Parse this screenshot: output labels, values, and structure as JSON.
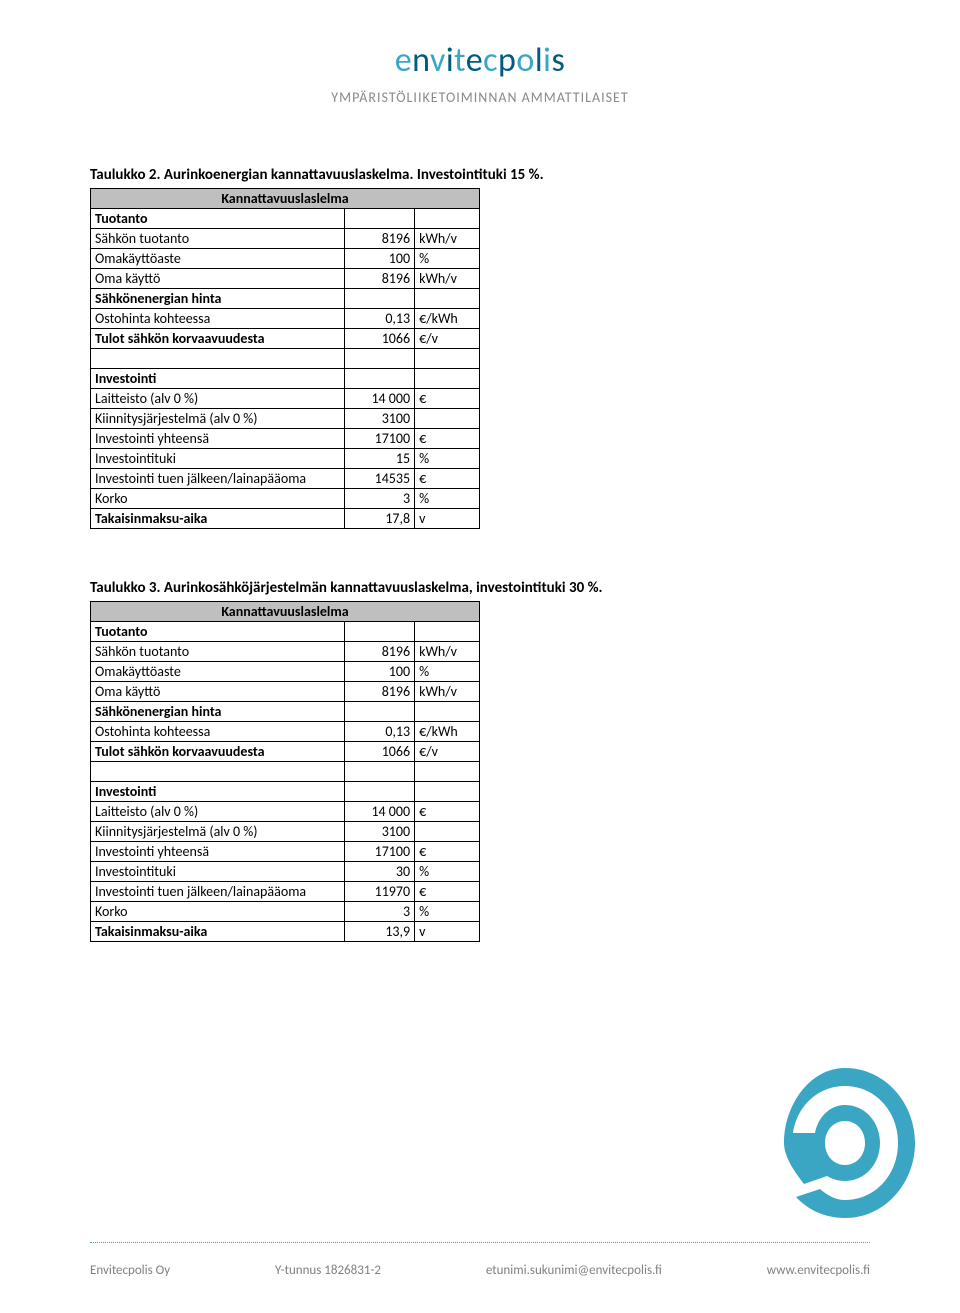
{
  "logo": {
    "text_parts": [
      {
        "t": "e",
        "c": "#3aa6c4"
      },
      {
        "t": "n",
        "c": "#005b7f"
      },
      {
        "t": "v",
        "c": "#3aa6c4"
      },
      {
        "t": "i",
        "c": "#005b7f"
      },
      {
        "t": "t",
        "c": "#3aa6c4"
      },
      {
        "t": "e",
        "c": "#005b7f"
      },
      {
        "t": "c",
        "c": "#3aa6c4"
      },
      {
        "t": "p",
        "c": "#005b7f"
      },
      {
        "t": "o",
        "c": "#3aa6c4"
      },
      {
        "t": "l",
        "c": "#005b7f"
      },
      {
        "t": "i",
        "c": "#3aa6c4"
      },
      {
        "t": "s",
        "c": "#005b7f"
      }
    ]
  },
  "subtitle": "YMPÄRISTÖLIIKETOIMINNAN AMMATTILAISET",
  "tables": [
    {
      "caption": "Taulukko 2. Aurinkoenergian kannattavuuslaskelma. Investointituki 15 %.",
      "header": "Kannattavuuslaslelma",
      "rows": [
        {
          "type": "section",
          "c1": "Tuotanto",
          "c2": "",
          "c3": ""
        },
        {
          "type": "data",
          "c1": "Sähkön tuotanto",
          "c2": "8196",
          "c3": "kWh/v"
        },
        {
          "type": "data",
          "c1": "Omakäyttöaste",
          "c2": "100",
          "c3": "%"
        },
        {
          "type": "data",
          "c1": "Oma käyttö",
          "c2": "8196",
          "c3": "kWh/v"
        },
        {
          "type": "bold",
          "c1": "Sähkönenergian hinta",
          "c2": "",
          "c3": ""
        },
        {
          "type": "data",
          "c1": "Ostohinta kohteessa",
          "c2": "0,13",
          "c3": "€/kWh"
        },
        {
          "type": "bold",
          "c1": "Tulot sähkön korvaavuudesta",
          "c2": "1066",
          "c3": "€/v"
        },
        {
          "type": "blank",
          "c1": "",
          "c2": "",
          "c3": ""
        },
        {
          "type": "bold",
          "c1": "Investointi",
          "c2": "",
          "c3": ""
        },
        {
          "type": "data",
          "c1": "Laitteisto (alv 0 %)",
          "c2": "14 000",
          "c3": "€"
        },
        {
          "type": "data",
          "c1": "Kiinnitysjärjestelmä (alv 0 %)",
          "c2": "3100",
          "c3": ""
        },
        {
          "type": "data",
          "c1": "Investointi yhteensä",
          "c2": "17100",
          "c3": "€"
        },
        {
          "type": "data",
          "c1": "Investointituki",
          "c2": "15",
          "c3": "%"
        },
        {
          "type": "data",
          "c1": "Investointi tuen jälkeen/lainapääoma",
          "c2": "14535",
          "c3": "€"
        },
        {
          "type": "data",
          "c1": "Korko",
          "c2": "3",
          "c3": "%"
        },
        {
          "type": "bold",
          "c1": "Takaisinmaksu-aika",
          "c2": "17,8",
          "c3": "v"
        }
      ]
    },
    {
      "caption": "Taulukko 3. Aurinkosähköjärjestelmän kannattavuuslaskelma, investointituki 30 %.",
      "header": "Kannattavuuslaslelma",
      "rows": [
        {
          "type": "section",
          "c1": "Tuotanto",
          "c2": "",
          "c3": ""
        },
        {
          "type": "data",
          "c1": "Sähkön tuotanto",
          "c2": "8196",
          "c3": "kWh/v"
        },
        {
          "type": "data",
          "c1": "Omakäyttöaste",
          "c2": "100",
          "c3": "%"
        },
        {
          "type": "data",
          "c1": "Oma käyttö",
          "c2": "8196",
          "c3": "kWh/v"
        },
        {
          "type": "bold",
          "c1": "Sähkönenergian hinta",
          "c2": "",
          "c3": ""
        },
        {
          "type": "data",
          "c1": "Ostohinta kohteessa",
          "c2": "0,13",
          "c3": "€/kWh"
        },
        {
          "type": "bold",
          "c1": "Tulot sähkön korvaavuudesta",
          "c2": "1066",
          "c3": "€/v"
        },
        {
          "type": "blank",
          "c1": "",
          "c2": "",
          "c3": ""
        },
        {
          "type": "bold",
          "c1": "Investointi",
          "c2": "",
          "c3": ""
        },
        {
          "type": "data",
          "c1": "Laitteisto (alv 0 %)",
          "c2": "14 000",
          "c3": "€"
        },
        {
          "type": "data",
          "c1": "Kiinnitysjärjestelmä (alv 0 %)",
          "c2": "3100",
          "c3": ""
        },
        {
          "type": "data",
          "c1": "Investointi yhteensä",
          "c2": "17100",
          "c3": "€"
        },
        {
          "type": "data",
          "c1": "Investointituki",
          "c2": "30",
          "c3": "%"
        },
        {
          "type": "data",
          "c1": "Investointi tuen jälkeen/lainapääoma",
          "c2": "11970",
          "c3": "€"
        },
        {
          "type": "data",
          "c1": "Korko",
          "c2": "3",
          "c3": "%"
        },
        {
          "type": "bold",
          "c1": "Takaisinmaksu-aika",
          "c2": "13,9",
          "c3": "v"
        }
      ]
    }
  ],
  "footer": {
    "company": "Envitecpolis Oy",
    "vat": "Y-tunnus 1826831-2",
    "email": "etunimi.sukunimi@envitecpolis.fi",
    "web": "www.envitecpolis.fi"
  },
  "colors": {
    "light_teal": "#3aa6c4",
    "dark_teal": "#005b7f"
  }
}
